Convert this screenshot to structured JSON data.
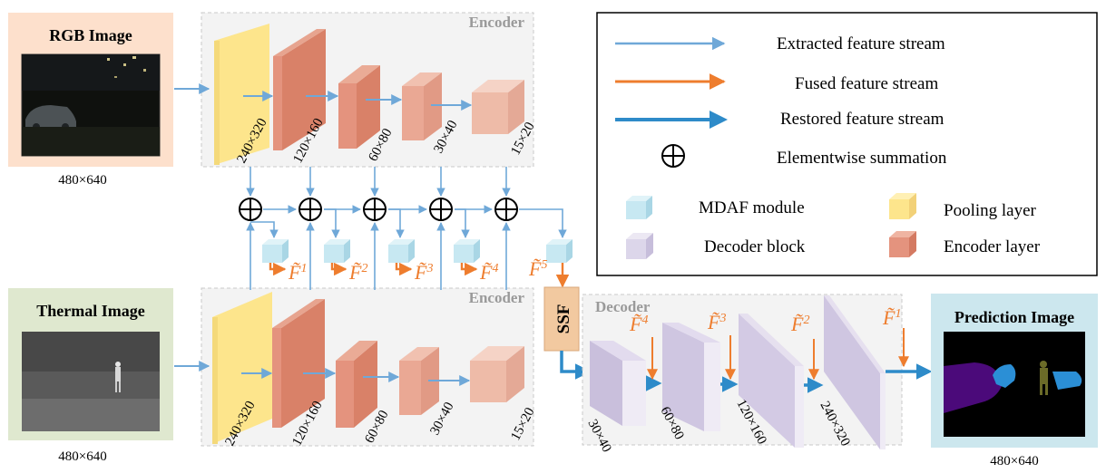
{
  "rgb_input": {
    "title": "RGB Image",
    "size": "480×640"
  },
  "thermal_input": {
    "title": "Thermal Image",
    "size": "480×640"
  },
  "prediction_output": {
    "title": "Prediction Image",
    "size": "480×640"
  },
  "rgb_encoder": {
    "label": "Encoder",
    "dims": [
      "240×320",
      "120×160",
      "60×80",
      "30×40",
      "15×20"
    ]
  },
  "thermal_encoder": {
    "label": "Encoder",
    "dims": [
      "240×320",
      "120×160",
      "60×80",
      "30×40",
      "15×20"
    ]
  },
  "decoder": {
    "label": "Decoder",
    "dims": [
      "30×40",
      "60×80",
      "120×160",
      "240×320"
    ]
  },
  "ssf": {
    "label": "SSF"
  },
  "fused_features": [
    "F̃",
    "F̃",
    "F̃",
    "F̃",
    "F̃"
  ],
  "fused_indices": [
    "1",
    "2",
    "3",
    "4",
    "5"
  ],
  "decoder_features": [
    "F̃",
    "F̃",
    "F̃",
    "F̃"
  ],
  "decoder_indices": [
    "4",
    "3",
    "2",
    "1"
  ],
  "legend": {
    "extracted": "Extracted feature stream",
    "fused": "Fused feature stream",
    "restored": "Restored feature stream",
    "summation": "Elementwise summation",
    "mdaf": "MDAF module",
    "pooling": "Pooling layer",
    "decoder_block": "Decoder block",
    "encoder_layer": "Encoder layer"
  },
  "colors": {
    "extracted": "#6fa8d8",
    "fused": "#ee7d2e",
    "restored": "#2e8bc9",
    "pooling": "#fde58c",
    "encoder": "#e4937e",
    "mdaf": "#c7e8f2",
    "decoder": "#dcd6ea",
    "ssf": "#f2c9a0",
    "rgb_panel": "#fde0cc",
    "thermal_panel": "#dfe8cf",
    "prediction_panel": "#cce7ee"
  }
}
